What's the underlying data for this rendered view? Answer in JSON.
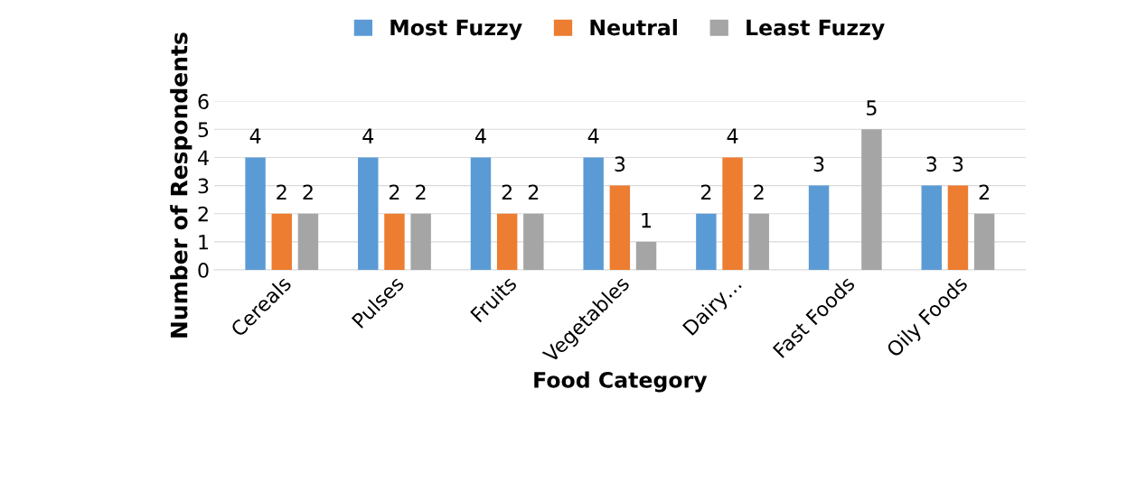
{
  "chart_data": {
    "type": "bar",
    "xlabel": "Food Category",
    "ylabel": "Number of Respondents",
    "categories": [
      "Cereals",
      "Pulses",
      "Fruits",
      "Vegetables",
      "Dairy…",
      "Fast Foods",
      "Oily Foods"
    ],
    "series": [
      {
        "name": "Most Fuzzy",
        "color": "#5b9bd5",
        "values": [
          4,
          4,
          4,
          4,
          2,
          3,
          3
        ]
      },
      {
        "name": "Neutral",
        "color": "#ed7d31",
        "values": [
          2,
          2,
          2,
          3,
          4,
          null,
          3
        ]
      },
      {
        "name": "Least Fuzzy",
        "color": "#a5a5a5",
        "values": [
          2,
          2,
          2,
          1,
          2,
          5,
          2
        ]
      }
    ],
    "ylim": [
      0,
      6
    ],
    "yticks": [
      0,
      1,
      2,
      3,
      4,
      5,
      6
    ],
    "grid": "y",
    "legend": "top",
    "data_labels": true
  }
}
